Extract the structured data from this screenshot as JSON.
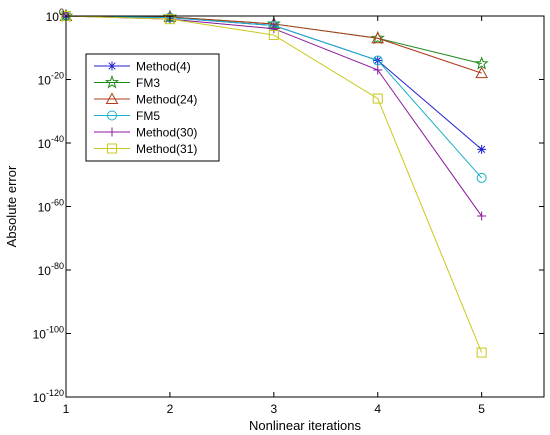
{
  "chart_data": {
    "type": "line",
    "xlabel": "Nonlinear iterations",
    "ylabel": "Absolute error",
    "x": [
      1,
      2,
      3,
      4,
      5
    ],
    "xlim": [
      1,
      5.6
    ],
    "ylog": true,
    "ylim_exponent": [
      -120,
      0
    ],
    "x_ticks": [
      "1",
      "2",
      "3",
      "4",
      "5"
    ],
    "y_ticks": [
      {
        "exp": 0,
        "label": "0"
      },
      {
        "exp": -20,
        "label": "-20"
      },
      {
        "exp": -40,
        "label": "-40"
      },
      {
        "exp": -60,
        "label": "-60"
      },
      {
        "exp": -80,
        "label": "-80"
      },
      {
        "exp": -100,
        "label": "-100"
      },
      {
        "exp": -120,
        "label": "-120"
      }
    ],
    "y_tick_base": "10",
    "grid": false,
    "legend_position": "top-left",
    "series": [
      {
        "name": "Method(4)",
        "color": "#1f1fcf",
        "marker": "asterisk",
        "y_exponent": [
          0,
          -0.5,
          -3,
          -14,
          -42
        ]
      },
      {
        "name": "FM3",
        "color": "#1a8a1a",
        "marker": "star",
        "y_exponent": [
          0,
          -0.3,
          -2.5,
          -7,
          -15
        ]
      },
      {
        "name": "Method(24)",
        "color": "#b03a1a",
        "marker": "triangle",
        "y_exponent": [
          0,
          -0.3,
          -2.5,
          -7,
          -18
        ]
      },
      {
        "name": "FM5",
        "color": "#1ab0c8",
        "marker": "circle",
        "y_exponent": [
          0,
          -0.5,
          -3,
          -14,
          -51
        ]
      },
      {
        "name": "Method(30)",
        "color": "#8a1a9a",
        "marker": "plus",
        "y_exponent": [
          0,
          -1,
          -4,
          -17,
          -63
        ]
      },
      {
        "name": "Method(31)",
        "color": "#c8c81a",
        "marker": "square",
        "y_exponent": [
          0,
          -1,
          -6,
          -26,
          -106
        ]
      }
    ]
  }
}
